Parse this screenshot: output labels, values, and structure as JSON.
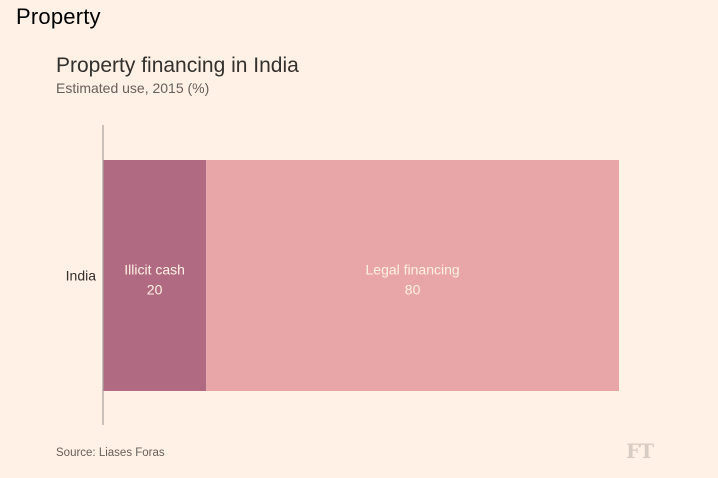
{
  "header": {
    "section": "Property"
  },
  "chart_data": {
    "type": "bar",
    "orientation": "horizontal",
    "stacked": true,
    "title": "Property financing in India",
    "subtitle": "Estimated use, 2015 (%)",
    "categories": [
      "India"
    ],
    "series": [
      {
        "name": "Illicit cash",
        "values": [
          20
        ],
        "color": "#b06a82"
      },
      {
        "name": "Legal financing",
        "values": [
          80
        ],
        "color": "#e8a6a8"
      }
    ],
    "xlim": [
      0,
      100
    ],
    "xlabel": "",
    "ylabel": "",
    "grid": false,
    "legend": "none"
  },
  "footer": {
    "source": "Source: Liases Foras",
    "logo": "FT"
  },
  "colors": {
    "background": "#fff1e5",
    "axis": "#a8a29e",
    "label_text": "#fff1e5"
  }
}
